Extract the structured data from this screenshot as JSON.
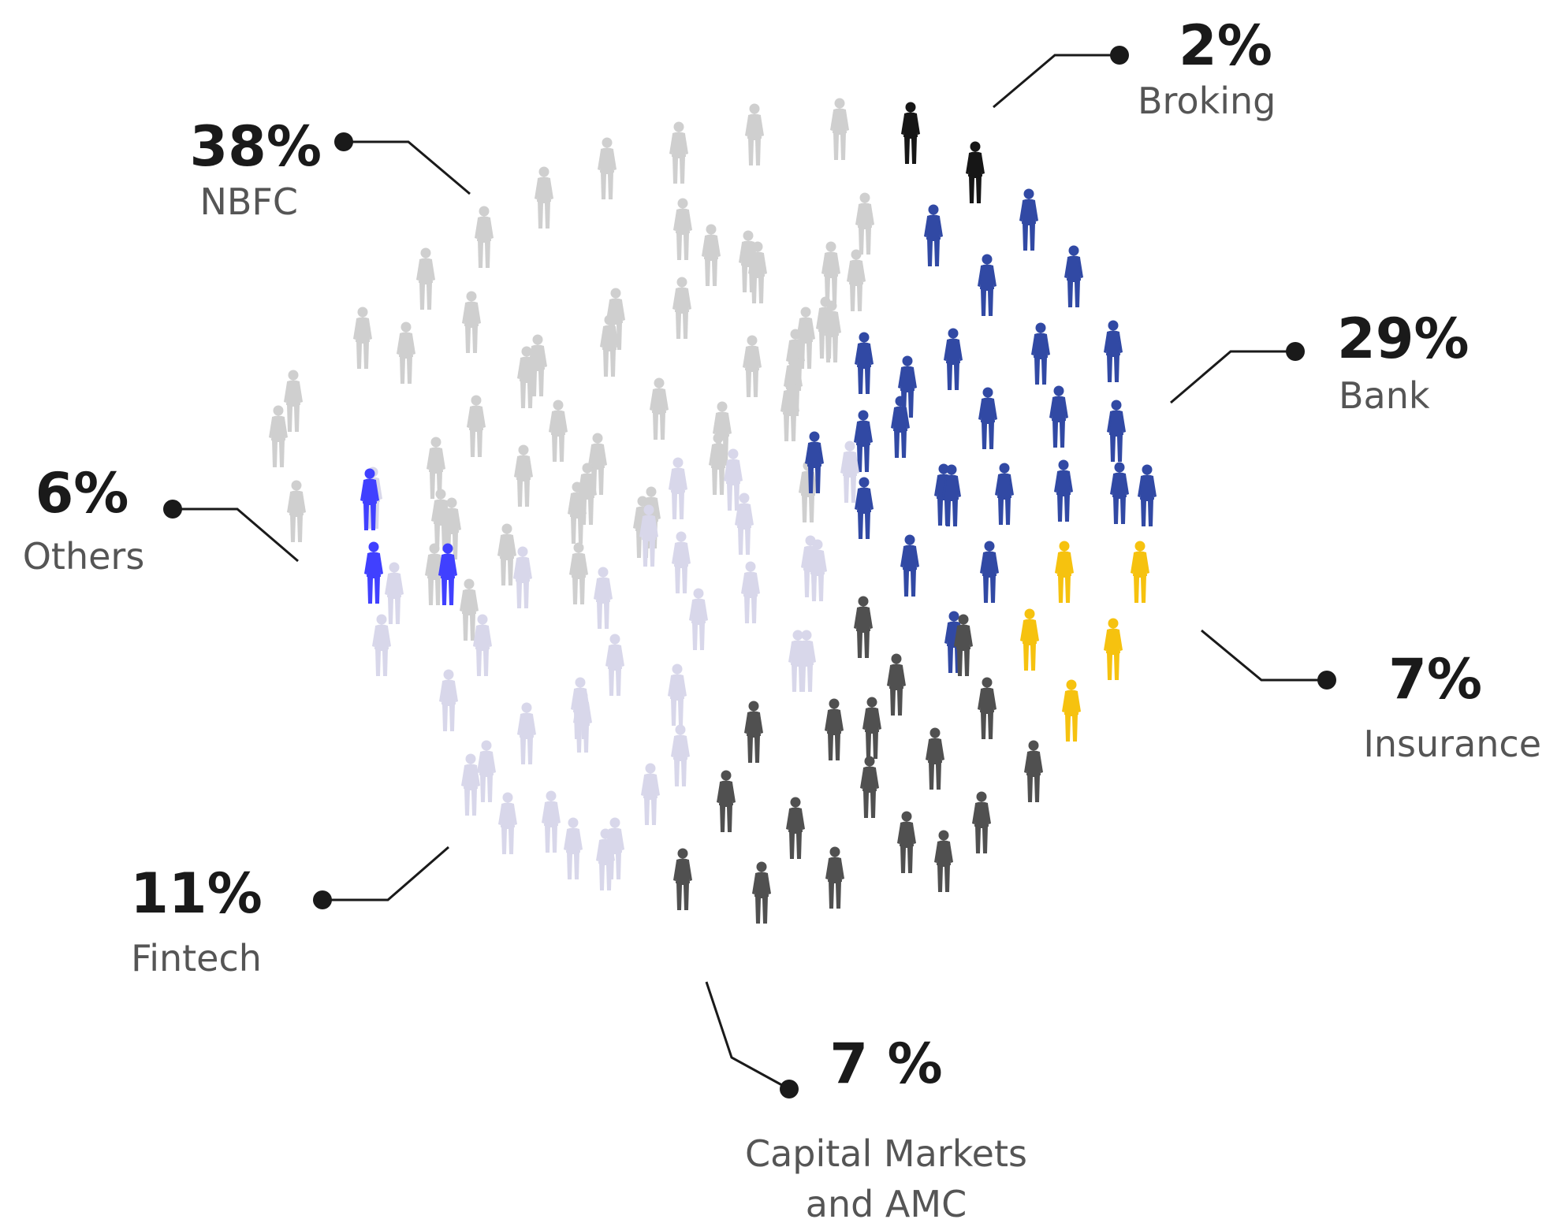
{
  "chart_data": {
    "type": "pictogram",
    "unit": "people",
    "segments": [
      {
        "key": "nbfc",
        "label": "NBFC",
        "value": "38%",
        "percent": 38,
        "color": "#cfcfcf"
      },
      {
        "key": "broking",
        "label": "Broking",
        "value": "2%",
        "percent": 2,
        "color": "#161616"
      },
      {
        "key": "bank",
        "label": "Bank",
        "value": "29%",
        "percent": 29,
        "color": "#3149a4"
      },
      {
        "key": "insurance",
        "label": "Insurance",
        "value": "7%",
        "percent": 7,
        "color": "#f6c20f"
      },
      {
        "key": "capital",
        "label_lines": [
          "Capital Markets",
          "and AMC"
        ],
        "value": "7 %",
        "percent": 7,
        "color": "#505050"
      },
      {
        "key": "fintech",
        "label": "Fintech",
        "value": "11%",
        "percent": 11,
        "color": "#d8d7ea"
      },
      {
        "key": "others",
        "label": "Others",
        "value": "6%",
        "percent": 6,
        "color": "#4040ff"
      }
    ]
  }
}
